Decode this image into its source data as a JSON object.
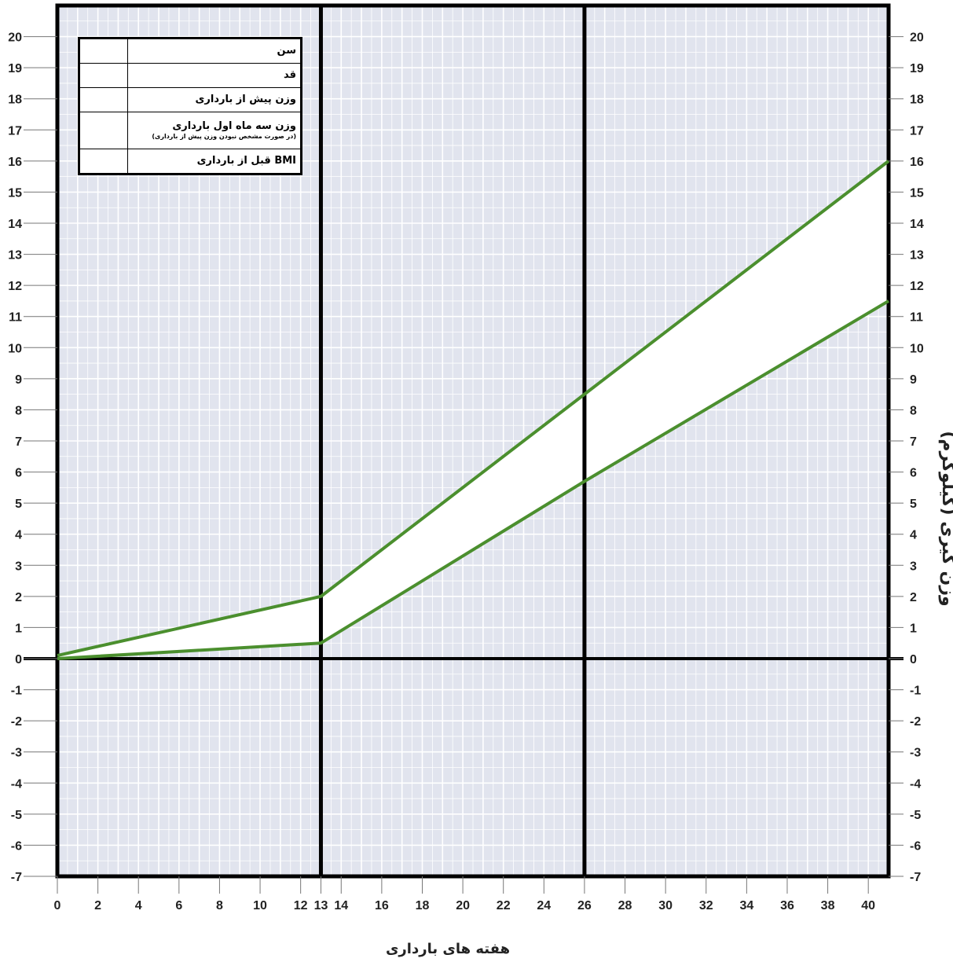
{
  "chart_data": {
    "type": "line",
    "xlabel": "هفته های بارداری",
    "ylabel": "وزن گیری (کیلوگرم)",
    "xlim": [
      0,
      41
    ],
    "ylim": [
      -7,
      21
    ],
    "x_ticks": [
      0,
      2,
      4,
      6,
      8,
      10,
      12,
      14,
      16,
      18,
      20,
      22,
      24,
      26,
      28,
      30,
      32,
      34,
      36,
      38,
      40
    ],
    "x_tick_labels": [
      "0",
      "2",
      "4",
      "6",
      "8",
      "10",
      "12",
      "13",
      "14",
      "16",
      "18",
      "20",
      "22",
      "24",
      "26",
      "28",
      "30",
      "32",
      "34",
      "36",
      "38",
      "40"
    ],
    "x_tick_values": [
      0,
      2,
      4,
      6,
      8,
      10,
      12,
      13,
      14,
      16,
      18,
      20,
      22,
      24,
      26,
      28,
      30,
      32,
      34,
      36,
      38,
      40
    ],
    "y_ticks": [
      -7,
      -6,
      -5,
      -4,
      -3,
      -2,
      -1,
      0,
      1,
      2,
      3,
      4,
      5,
      6,
      7,
      8,
      9,
      10,
      11,
      12,
      13,
      14,
      15,
      16,
      17,
      18,
      19,
      20
    ],
    "vertical_markers": [
      13,
      26
    ],
    "series": [
      {
        "x": [
          0,
          13,
          26,
          41
        ],
        "values": [
          0.1,
          2.0,
          8.5,
          16.0
        ]
      },
      {
        "x": [
          0,
          13,
          26,
          41
        ],
        "values": [
          0.0,
          0.5,
          5.7,
          11.5
        ]
      }
    ],
    "grid": true,
    "colors": {
      "line": "#4b8f2e",
      "background": "#e1e4ee",
      "band": "#ffffff",
      "grid": "#ffffff",
      "frame": "#000000"
    }
  },
  "info_table": {
    "rows": [
      {
        "label": "سن",
        "value": ""
      },
      {
        "label": "قد",
        "value": ""
      },
      {
        "label": "وزن پیش از بارداری",
        "value": ""
      },
      {
        "label": "وزن سه ماه اول بارداری",
        "note": "(در صورت مشخص نبودن وزن پیش از بارداری)",
        "value": ""
      },
      {
        "label": "BMI قبل از بارداری",
        "value": ""
      }
    ]
  }
}
